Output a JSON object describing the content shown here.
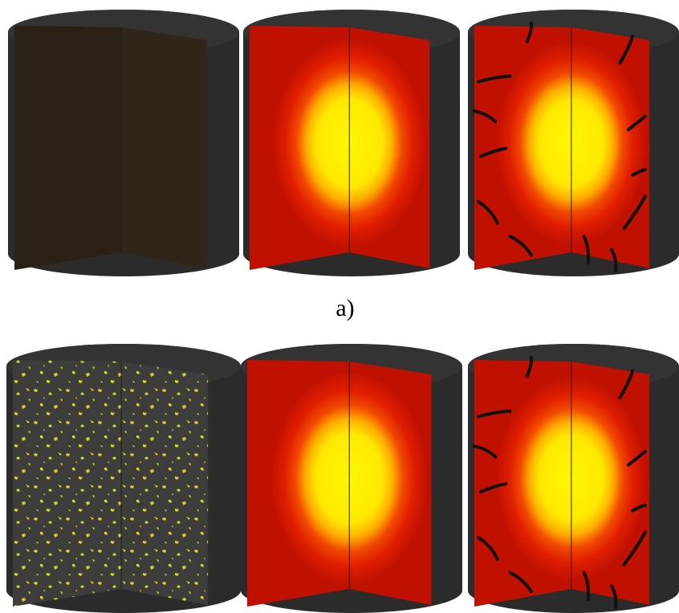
{
  "caption": "a)"
}
